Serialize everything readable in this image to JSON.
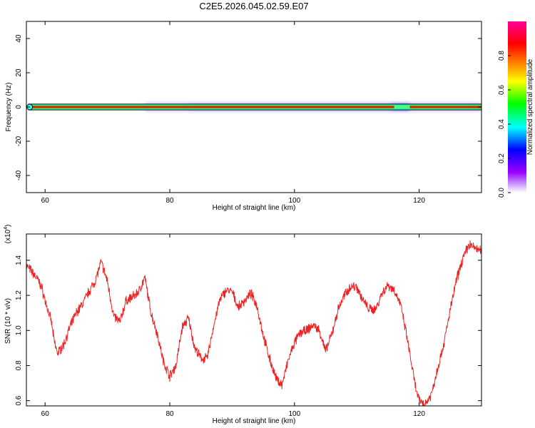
{
  "title": "C2E5.2026.045.02.59.E07",
  "chart_data": [
    {
      "type": "heatmap",
      "name": "spectrogram",
      "xlabel": "Height of straight line (km)",
      "ylabel": "Frequency (Hz)",
      "xlim": [
        57,
        130
      ],
      "ylim": [
        -50,
        50
      ],
      "xticks": [
        60,
        80,
        100,
        120
      ],
      "yticks": [
        -40,
        -20,
        0,
        20,
        40
      ],
      "band_center_hz": 0,
      "band_core_halfwidth_hz": 1,
      "diffuse_region_km": [
        80,
        118
      ],
      "colorbar": {
        "label": "Normalized spectral amplitude",
        "ticks": [
          0.0,
          0.2,
          0.4,
          0.6,
          0.8
        ],
        "range": [
          0,
          1
        ],
        "colors": [
          "#ffffff",
          "#9900ff",
          "#0000ff",
          "#00ffff",
          "#00ff00",
          "#ffff00",
          "#ff8800",
          "#ff0000",
          "#ff0099"
        ]
      }
    },
    {
      "type": "line",
      "name": "snr",
      "xlabel": "Height of straight line (km)",
      "ylabel": "SNR (10 * v/v)",
      "scale_label": "(x10",
      "scale_exponent": "4",
      "xlim": [
        57,
        130
      ],
      "ylim": [
        0.57,
        1.55
      ],
      "xticks": [
        60,
        80,
        100,
        120
      ],
      "yticks": [
        0.6,
        0.8,
        1.0,
        1.2,
        1.4
      ],
      "color": "#ee2222",
      "x": [
        57,
        58,
        59,
        59.5,
        60,
        61,
        61.5,
        62,
        63,
        64,
        65,
        66,
        67,
        68,
        69,
        70,
        71,
        72,
        73,
        74,
        75,
        76,
        77,
        78,
        79,
        80,
        81,
        82,
        83,
        84,
        85,
        86,
        87,
        88,
        89,
        90,
        91,
        92,
        93,
        94,
        95,
        96,
        97,
        98,
        99,
        100,
        101,
        102,
        103,
        104,
        105,
        106,
        107,
        108,
        109,
        110,
        111,
        112,
        113,
        114,
        115,
        116,
        117,
        118,
        119,
        119.5,
        120,
        121,
        122,
        123,
        124,
        125,
        126,
        127,
        128,
        129,
        130
      ],
      "y": [
        1.37,
        1.33,
        1.28,
        1.24,
        1.17,
        1.05,
        0.93,
        0.87,
        0.92,
        1.02,
        1.1,
        1.15,
        1.22,
        1.28,
        1.39,
        1.28,
        1.08,
        1.05,
        1.17,
        1.19,
        1.22,
        1.3,
        1.1,
        0.98,
        0.82,
        0.74,
        0.8,
        1.02,
        1.07,
        0.9,
        0.84,
        0.84,
        1.02,
        1.17,
        1.23,
        1.22,
        1.13,
        1.17,
        1.21,
        1.14,
        0.97,
        0.84,
        0.73,
        0.69,
        0.83,
        0.93,
        0.99,
        1.0,
        1.03,
        1.0,
        0.88,
        0.98,
        1.12,
        1.2,
        1.25,
        1.25,
        1.17,
        1.12,
        1.12,
        1.21,
        1.26,
        1.23,
        1.15,
        0.97,
        0.76,
        0.66,
        0.6,
        0.58,
        0.64,
        0.79,
        0.93,
        1.12,
        1.29,
        1.41,
        1.49,
        1.47,
        1.45
      ]
    }
  ]
}
